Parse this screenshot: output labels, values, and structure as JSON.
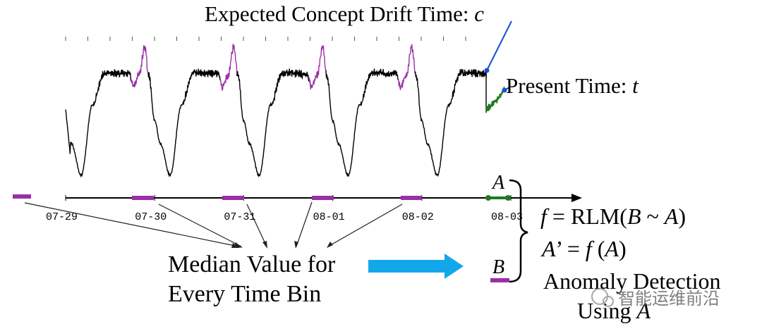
{
  "title": [
    {
      "text": "Expected Concept Drift Time: ",
      "italic": false
    },
    {
      "text": "c",
      "italic": true
    }
  ],
  "present": [
    {
      "text": "Present Time: ",
      "italic": false
    },
    {
      "text": "t",
      "italic": true
    }
  ],
  "x_ticks": [
    "07-29",
    "07-30",
    "07-31",
    "08-01",
    "08-02",
    "08-03"
  ],
  "median_label": [
    "Median Value for",
    "Every Time Bin"
  ],
  "labels": {
    "a": "A",
    "b": "B"
  },
  "formulas": [
    [
      {
        "text": "f",
        "italic": true
      },
      {
        "text": " = RLM(",
        "italic": false
      },
      {
        "text": "B",
        "italic": true
      },
      {
        "text": " ~ ",
        "italic": false
      },
      {
        "text": "A",
        "italic": true
      },
      {
        "text": ")",
        "italic": false
      }
    ],
    [
      {
        "text": "A",
        "italic": true
      },
      {
        "text": "’ = ",
        "italic": false
      },
      {
        "text": "f",
        "italic": true
      },
      {
        "text": " (",
        "italic": false
      },
      {
        "text": "A",
        "italic": true
      },
      {
        "text": ")",
        "italic": false
      }
    ],
    [
      {
        "text": "Anomaly Detection",
        "italic": false
      }
    ],
    [
      {
        "text": "Using ",
        "italic": false
      },
      {
        "text": "A",
        "italic": true
      }
    ]
  ],
  "watermark": "智能运维前沿"
}
